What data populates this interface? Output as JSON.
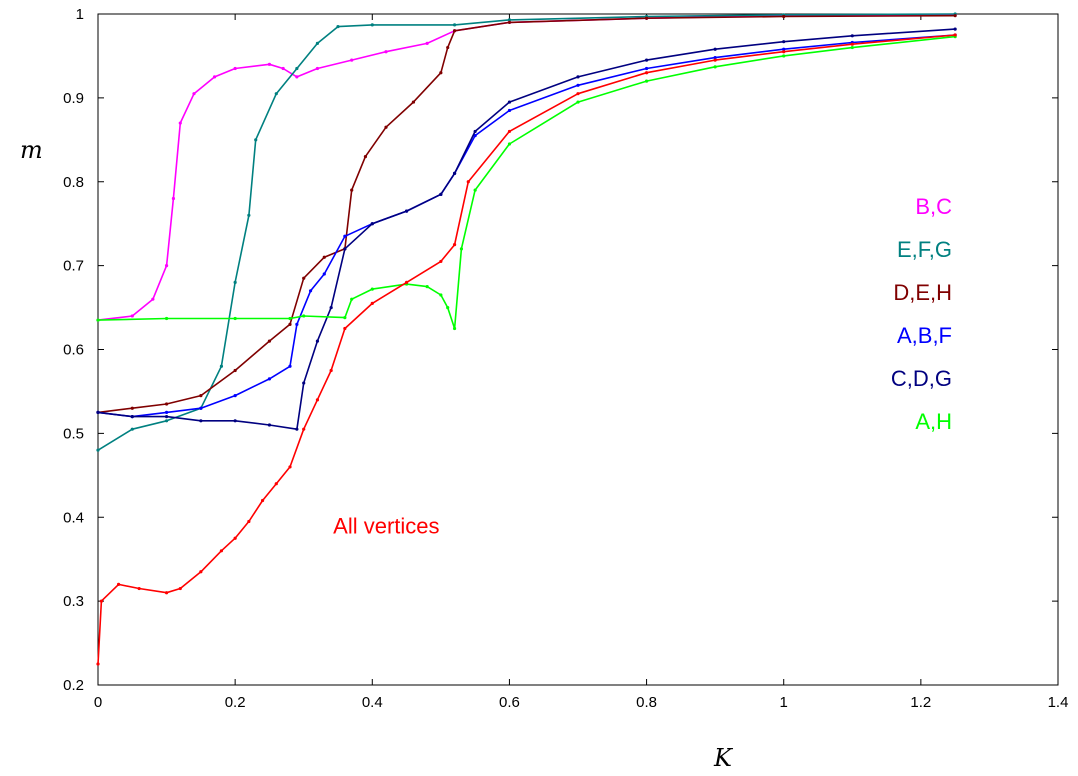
{
  "chart_data": {
    "type": "scatter",
    "xlabel": "K",
    "ylabel": "m",
    "xlim": [
      0,
      1.4
    ],
    "ylim": [
      0.2,
      1.0
    ],
    "xticks": [
      0,
      0.2,
      0.4,
      0.6,
      0.8,
      1,
      1.2,
      1.4
    ],
    "xtick_labels": [
      "0",
      "0.2",
      "0.4",
      "0.6",
      "0.8",
      "1",
      "1.2",
      "1.4"
    ],
    "yticks": [
      0.2,
      0.3,
      0.4,
      0.5,
      0.6,
      0.7,
      0.8,
      0.9,
      1
    ],
    "ytick_labels": [
      "0.2",
      "0.3",
      "0.4",
      "0.5",
      "0.6",
      "0.7",
      "0.8",
      "0.9",
      "1"
    ],
    "grid": false,
    "legend_position": "right",
    "annotations": [
      {
        "text": "All vertices",
        "x": 0.27,
        "y": 0.39,
        "color": "#ff0000"
      }
    ],
    "series": [
      {
        "name": "B,C",
        "color": "#ff00ff",
        "points": [
          [
            0,
            0.635
          ],
          [
            0.05,
            0.64
          ],
          [
            0.08,
            0.66
          ],
          [
            0.1,
            0.7
          ],
          [
            0.11,
            0.78
          ],
          [
            0.12,
            0.87
          ],
          [
            0.14,
            0.905
          ],
          [
            0.17,
            0.925
          ],
          [
            0.2,
            0.935
          ],
          [
            0.25,
            0.94
          ],
          [
            0.27,
            0.935
          ],
          [
            0.29,
            0.925
          ],
          [
            0.32,
            0.935
          ],
          [
            0.37,
            0.945
          ],
          [
            0.42,
            0.955
          ],
          [
            0.48,
            0.965
          ],
          [
            0.52,
            0.98
          ],
          [
            0.6,
            0.99
          ],
          [
            0.8,
            0.995
          ],
          [
            1.0,
            0.998
          ],
          [
            1.25,
            0.999
          ]
        ]
      },
      {
        "name": "E,F,G",
        "color": "#008080",
        "points": [
          [
            0,
            0.48
          ],
          [
            0.05,
            0.505
          ],
          [
            0.1,
            0.515
          ],
          [
            0.15,
            0.53
          ],
          [
            0.18,
            0.58
          ],
          [
            0.2,
            0.68
          ],
          [
            0.22,
            0.76
          ],
          [
            0.23,
            0.85
          ],
          [
            0.26,
            0.905
          ],
          [
            0.29,
            0.935
          ],
          [
            0.32,
            0.965
          ],
          [
            0.35,
            0.985
          ],
          [
            0.4,
            0.987
          ],
          [
            0.52,
            0.987
          ],
          [
            0.6,
            0.993
          ],
          [
            0.8,
            0.997
          ],
          [
            1.0,
            0.999
          ],
          [
            1.25,
            1.0
          ]
        ]
      },
      {
        "name": "D,E,H",
        "color": "#800000",
        "points": [
          [
            0,
            0.525
          ],
          [
            0.05,
            0.53
          ],
          [
            0.1,
            0.535
          ],
          [
            0.15,
            0.545
          ],
          [
            0.2,
            0.575
          ],
          [
            0.25,
            0.61
          ],
          [
            0.28,
            0.63
          ],
          [
            0.3,
            0.685
          ],
          [
            0.33,
            0.71
          ],
          [
            0.36,
            0.72
          ],
          [
            0.37,
            0.79
          ],
          [
            0.39,
            0.83
          ],
          [
            0.42,
            0.865
          ],
          [
            0.46,
            0.895
          ],
          [
            0.5,
            0.93
          ],
          [
            0.51,
            0.96
          ],
          [
            0.52,
            0.98
          ],
          [
            0.6,
            0.99
          ],
          [
            0.8,
            0.995
          ],
          [
            1.0,
            0.997
          ],
          [
            1.25,
            0.998
          ]
        ]
      },
      {
        "name": "A,B,F",
        "color": "#0000ff",
        "points": [
          [
            0,
            0.525
          ],
          [
            0.05,
            0.52
          ],
          [
            0.1,
            0.525
          ],
          [
            0.15,
            0.53
          ],
          [
            0.2,
            0.545
          ],
          [
            0.25,
            0.565
          ],
          [
            0.28,
            0.58
          ],
          [
            0.29,
            0.63
          ],
          [
            0.31,
            0.67
          ],
          [
            0.33,
            0.69
          ],
          [
            0.36,
            0.735
          ],
          [
            0.4,
            0.75
          ],
          [
            0.45,
            0.765
          ],
          [
            0.5,
            0.785
          ],
          [
            0.52,
            0.81
          ],
          [
            0.55,
            0.855
          ],
          [
            0.6,
            0.885
          ],
          [
            0.7,
            0.915
          ],
          [
            0.8,
            0.935
          ],
          [
            0.9,
            0.948
          ],
          [
            1.0,
            0.958
          ],
          [
            1.1,
            0.966
          ],
          [
            1.25,
            0.975
          ]
        ]
      },
      {
        "name": "C,D,G",
        "color": "#000080",
        "points": [
          [
            0,
            0.525
          ],
          [
            0.05,
            0.52
          ],
          [
            0.1,
            0.52
          ],
          [
            0.15,
            0.515
          ],
          [
            0.2,
            0.515
          ],
          [
            0.25,
            0.51
          ],
          [
            0.29,
            0.505
          ],
          [
            0.3,
            0.56
          ],
          [
            0.32,
            0.61
          ],
          [
            0.34,
            0.65
          ],
          [
            0.36,
            0.72
          ],
          [
            0.4,
            0.75
          ],
          [
            0.45,
            0.765
          ],
          [
            0.5,
            0.785
          ],
          [
            0.52,
            0.81
          ],
          [
            0.55,
            0.86
          ],
          [
            0.6,
            0.895
          ],
          [
            0.7,
            0.925
          ],
          [
            0.8,
            0.945
          ],
          [
            0.9,
            0.958
          ],
          [
            1.0,
            0.967
          ],
          [
            1.1,
            0.974
          ],
          [
            1.25,
            0.982
          ]
        ]
      },
      {
        "name": "A,H",
        "color": "#00ff00",
        "points": [
          [
            0,
            0.635
          ],
          [
            0.1,
            0.637
          ],
          [
            0.2,
            0.637
          ],
          [
            0.28,
            0.637
          ],
          [
            0.3,
            0.64
          ],
          [
            0.36,
            0.638
          ],
          [
            0.37,
            0.66
          ],
          [
            0.4,
            0.672
          ],
          [
            0.45,
            0.678
          ],
          [
            0.48,
            0.675
          ],
          [
            0.5,
            0.665
          ],
          [
            0.51,
            0.65
          ],
          [
            0.52,
            0.625
          ],
          [
            0.53,
            0.72
          ],
          [
            0.55,
            0.79
          ],
          [
            0.6,
            0.845
          ],
          [
            0.7,
            0.895
          ],
          [
            0.8,
            0.92
          ],
          [
            0.9,
            0.937
          ],
          [
            1.0,
            0.95
          ],
          [
            1.1,
            0.96
          ],
          [
            1.25,
            0.973
          ]
        ]
      },
      {
        "name": "All vertices",
        "color": "#ff0000",
        "points": [
          [
            0,
            0.225
          ],
          [
            0.005,
            0.3
          ],
          [
            0.03,
            0.32
          ],
          [
            0.06,
            0.315
          ],
          [
            0.1,
            0.31
          ],
          [
            0.12,
            0.315
          ],
          [
            0.15,
            0.335
          ],
          [
            0.18,
            0.36
          ],
          [
            0.2,
            0.375
          ],
          [
            0.22,
            0.395
          ],
          [
            0.24,
            0.42
          ],
          [
            0.26,
            0.44
          ],
          [
            0.28,
            0.46
          ],
          [
            0.3,
            0.505
          ],
          [
            0.32,
            0.54
          ],
          [
            0.34,
            0.575
          ],
          [
            0.36,
            0.625
          ],
          [
            0.4,
            0.655
          ],
          [
            0.45,
            0.68
          ],
          [
            0.5,
            0.705
          ],
          [
            0.52,
            0.725
          ],
          [
            0.54,
            0.8
          ],
          [
            0.6,
            0.86
          ],
          [
            0.7,
            0.905
          ],
          [
            0.8,
            0.93
          ],
          [
            0.9,
            0.945
          ],
          [
            1.0,
            0.955
          ],
          [
            1.1,
            0.964
          ],
          [
            1.25,
            0.975
          ]
        ]
      }
    ]
  }
}
